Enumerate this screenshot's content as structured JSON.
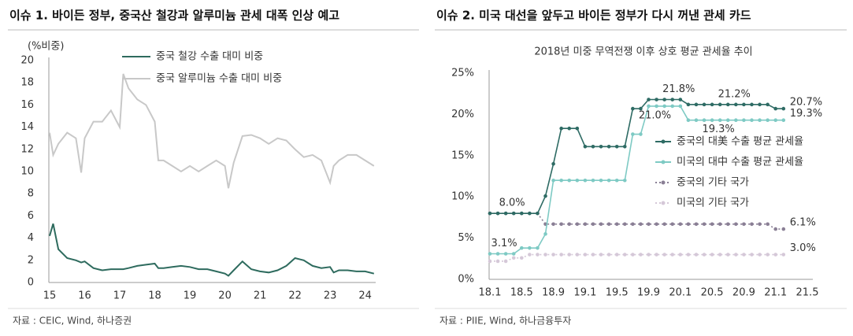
{
  "chart_data": [
    {
      "type": "line",
      "title": "이슈 1. 바이든 정부, 중국산 철강과 알루미늄 관세 대폭 인상 예고",
      "ylabel": "(%비중)",
      "source": "자료 : CEIC, Wind, 하나증권",
      "x": [
        15,
        15.1,
        15.25,
        15.5,
        15.75,
        15.9,
        16,
        16.25,
        16.5,
        16.75,
        17,
        17.1,
        17.25,
        17.5,
        17.75,
        18,
        18.1,
        18.25,
        18.5,
        18.75,
        19,
        19.25,
        19.5,
        19.75,
        20,
        20.1,
        20.25,
        20.5,
        20.75,
        21,
        21.25,
        21.5,
        21.75,
        22,
        22.25,
        22.5,
        22.75,
        23,
        23.1,
        23.25,
        23.5,
        23.75,
        24,
        24.25
      ],
      "series": [
        {
          "name": "중국 철강 수출 대미 비중",
          "color": "#2e6b5e",
          "values": [
            4.2,
            5.3,
            3.0,
            2.2,
            2.0,
            1.8,
            1.9,
            1.3,
            1.1,
            1.2,
            1.2,
            1.2,
            1.3,
            1.5,
            1.6,
            1.7,
            1.3,
            1.3,
            1.4,
            1.5,
            1.4,
            1.2,
            1.2,
            1.0,
            0.8,
            0.6,
            1.1,
            1.9,
            1.2,
            1.0,
            0.9,
            1.1,
            1.5,
            2.2,
            2.0,
            1.5,
            1.3,
            1.4,
            0.9,
            1.1,
            1.1,
            1.0,
            1.0,
            0.8
          ]
        },
        {
          "name": "중국 알루미늄 수출 대미 비중",
          "color": "#c8c8c8",
          "values": [
            13.5,
            11.5,
            12.5,
            13.5,
            13.0,
            9.9,
            13.0,
            14.5,
            14.5,
            15.5,
            14.0,
            18.8,
            17.5,
            16.5,
            16.0,
            14.5,
            11.0,
            11.0,
            10.5,
            10.0,
            10.5,
            10.0,
            10.5,
            11.0,
            10.5,
            8.5,
            10.8,
            13.2,
            13.3,
            13.0,
            12.5,
            13.0,
            12.8,
            12.0,
            11.3,
            11.5,
            11.0,
            9.0,
            10.5,
            11.0,
            11.5,
            11.5,
            11.0,
            10.5
          ]
        }
      ],
      "xlim": [
        15,
        24.3
      ],
      "xticks": [
        15,
        16,
        17,
        18,
        19,
        20,
        21,
        22,
        23,
        24
      ],
      "ylim": [
        0,
        20
      ],
      "yticks": [
        0,
        2,
        4,
        6,
        8,
        10,
        12,
        14,
        16,
        18,
        20
      ],
      "grid": false,
      "legend": "top"
    },
    {
      "type": "line",
      "title": "이슈 2. 미국 대선을 앞두고 바이든 정부가 다시 꺼낸 관세 카드",
      "subtitle": "2018년 미중 무역전쟁 이후 상호 평균 관세율 추이",
      "source": "자료 : PIIE, Wind, 하나금융투자",
      "categories": [
        "18.1",
        null,
        null,
        null,
        "18.5",
        null,
        null,
        null,
        "18.9",
        null,
        null,
        null,
        "19.1",
        null,
        null,
        null,
        "19.5",
        null,
        null,
        null,
        "19.9",
        null,
        null,
        null,
        "20.1",
        null,
        null,
        null,
        "20.5",
        null,
        null,
        null,
        "20.9",
        null,
        null,
        null,
        "21.1",
        null,
        null,
        null,
        "21.5"
      ],
      "series": [
        {
          "name": "중국의 대美 수출 평균 관세율",
          "color": "#2e6b64",
          "style": "solid",
          "values": [
            8.0,
            8.0,
            8.0,
            8.0,
            8.0,
            8.0,
            8.0,
            10.1,
            14.0,
            18.3,
            18.3,
            18.3,
            16.1,
            16.1,
            16.1,
            16.1,
            16.1,
            16.1,
            20.7,
            20.7,
            21.8,
            21.8,
            21.8,
            21.8,
            21.8,
            21.2,
            21.2,
            21.2,
            21.2,
            21.2,
            21.2,
            21.2,
            21.2,
            21.2,
            21.2,
            21.2,
            20.7,
            20.7,
            null,
            null,
            null
          ],
          "value_labels": [
            null,
            null,
            "8.0%",
            null,
            null,
            null,
            null,
            null,
            null,
            null,
            null,
            null,
            null,
            null,
            null,
            null,
            null,
            null,
            null,
            null,
            null,
            null,
            null,
            "21.8%",
            null,
            null,
            null,
            null,
            null,
            null,
            "21.2%",
            null,
            null,
            null,
            null,
            null,
            null,
            "20.7%",
            null,
            null,
            null
          ]
        },
        {
          "name": "미국의 대中 수출 평균 관세율",
          "color": "#7ecac4",
          "style": "solid",
          "values": [
            3.1,
            3.1,
            3.1,
            3.1,
            3.8,
            3.8,
            3.8,
            5.5,
            12.0,
            12.0,
            12.0,
            12.0,
            12.0,
            12.0,
            12.0,
            12.0,
            12.0,
            12.0,
            17.6,
            17.6,
            21.0,
            21.0,
            21.0,
            21.0,
            21.0,
            19.3,
            19.3,
            19.3,
            19.3,
            19.3,
            19.3,
            19.3,
            19.3,
            19.3,
            19.3,
            19.3,
            19.3,
            19.3,
            null,
            null,
            null
          ],
          "value_labels": [
            null,
            "3.1%",
            null,
            null,
            null,
            null,
            null,
            null,
            null,
            null,
            null,
            null,
            null,
            null,
            null,
            null,
            null,
            null,
            null,
            null,
            "21.0%",
            null,
            null,
            null,
            null,
            null,
            null,
            null,
            "19.3%",
            null,
            null,
            null,
            null,
            null,
            null,
            null,
            null,
            "19.3%",
            null,
            null,
            null
          ]
        },
        {
          "name": "중국의 기타 국가",
          "color": "#8a7f95",
          "style": "dotted",
          "values": [
            8.0,
            8.0,
            8.0,
            8.0,
            8.0,
            8.0,
            8.0,
            6.7,
            6.7,
            6.7,
            6.7,
            6.7,
            6.7,
            6.7,
            6.7,
            6.7,
            6.7,
            6.7,
            6.7,
            6.7,
            6.7,
            6.7,
            6.7,
            6.7,
            6.7,
            6.7,
            6.7,
            6.7,
            6.7,
            6.7,
            6.7,
            6.7,
            6.7,
            6.7,
            6.7,
            6.7,
            6.1,
            6.1,
            null,
            null,
            null
          ],
          "value_labels": [
            null,
            null,
            null,
            null,
            null,
            null,
            null,
            null,
            null,
            null,
            null,
            null,
            null,
            null,
            null,
            null,
            null,
            null,
            null,
            null,
            null,
            null,
            null,
            null,
            null,
            null,
            null,
            null,
            null,
            null,
            null,
            null,
            null,
            null,
            null,
            null,
            null,
            "6.1%",
            null,
            null,
            null
          ]
        },
        {
          "name": "미국의 기타 국가",
          "color": "#d5c8d8",
          "style": "dotted",
          "values": [
            2.2,
            2.2,
            2.2,
            2.6,
            2.6,
            3.0,
            3.0,
            3.0,
            3.0,
            3.0,
            3.0,
            3.0,
            3.0,
            3.0,
            3.0,
            3.0,
            3.0,
            3.0,
            3.0,
            3.0,
            3.0,
            3.0,
            3.0,
            3.0,
            3.0,
            3.0,
            3.0,
            3.0,
            3.0,
            3.0,
            3.0,
            3.0,
            3.0,
            3.0,
            3.0,
            3.0,
            3.0,
            3.0,
            null,
            null,
            null
          ],
          "value_labels": [
            null,
            null,
            null,
            null,
            null,
            null,
            null,
            null,
            null,
            null,
            null,
            null,
            null,
            null,
            null,
            null,
            null,
            null,
            null,
            null,
            null,
            null,
            null,
            null,
            null,
            null,
            null,
            null,
            null,
            null,
            null,
            null,
            null,
            null,
            null,
            null,
            null,
            "3.0%",
            null,
            null,
            null
          ]
        }
      ],
      "ylim": [
        0,
        25
      ],
      "yticks": [
        {
          "value": 0,
          "label": "0%"
        },
        {
          "value": 5,
          "label": "5%"
        },
        {
          "value": 10,
          "label": "10%"
        },
        {
          "value": 15,
          "label": "15%"
        },
        {
          "value": 20,
          "label": "20%"
        },
        {
          "value": 25,
          "label": "25%"
        }
      ],
      "grid": false,
      "legend": "right",
      "markers": true
    }
  ]
}
